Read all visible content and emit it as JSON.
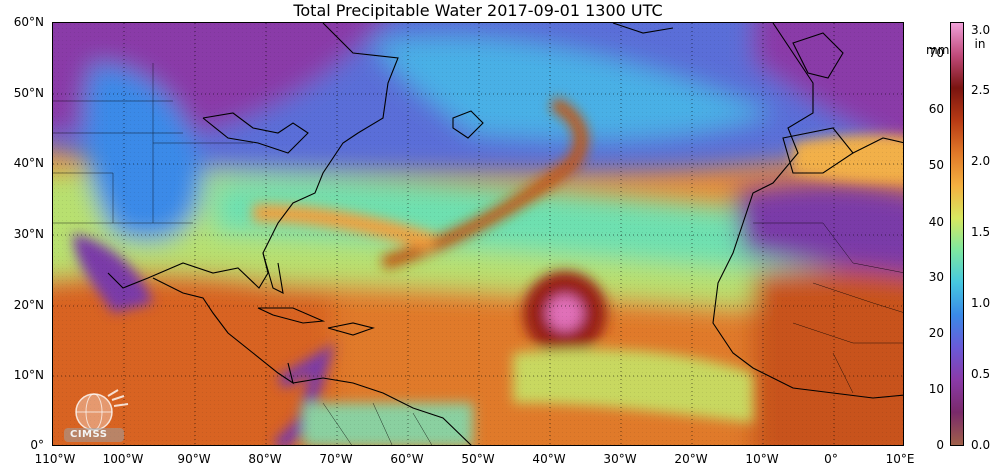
{
  "title": "Total Precipitable Water  2017-09-01 1300 UTC",
  "map": {
    "lat_labels": [
      "60°N",
      "50°N",
      "40°N",
      "30°N",
      "20°N",
      "10°N",
      "0°"
    ],
    "lon_labels": [
      "110°W",
      "100°W",
      "90°W",
      "80°W",
      "70°W",
      "60°W",
      "50°W",
      "40°W",
      "30°W",
      "20°W",
      "10°W",
      "0°",
      "10°E"
    ],
    "lat_range": [
      0,
      60
    ],
    "lon_range": [
      -110,
      10
    ],
    "grid": "dotted"
  },
  "colorbar": {
    "mm_unit": "mm",
    "in_unit": "in",
    "mm_ticks": [
      "0",
      "10",
      "20",
      "30",
      "40",
      "50",
      "60",
      "70"
    ],
    "in_ticks": [
      "0.0",
      "0.5",
      "1.0",
      "1.5",
      "2.0",
      "2.5",
      "3.0"
    ],
    "mm_range": [
      0,
      76
    ],
    "colors": [
      "#a0604a",
      "#7a2a6a",
      "#8a3aa8",
      "#6a5ad8",
      "#3a8ae8",
      "#46c8e0",
      "#7ee8a0",
      "#d8e860",
      "#f4b040",
      "#e07828",
      "#b83a14",
      "#7a1410",
      "#c04a7a",
      "#f0a0d8"
    ]
  },
  "logo": {
    "text": "CIMSS",
    "icon": "cimss-globe-logo-icon"
  }
}
